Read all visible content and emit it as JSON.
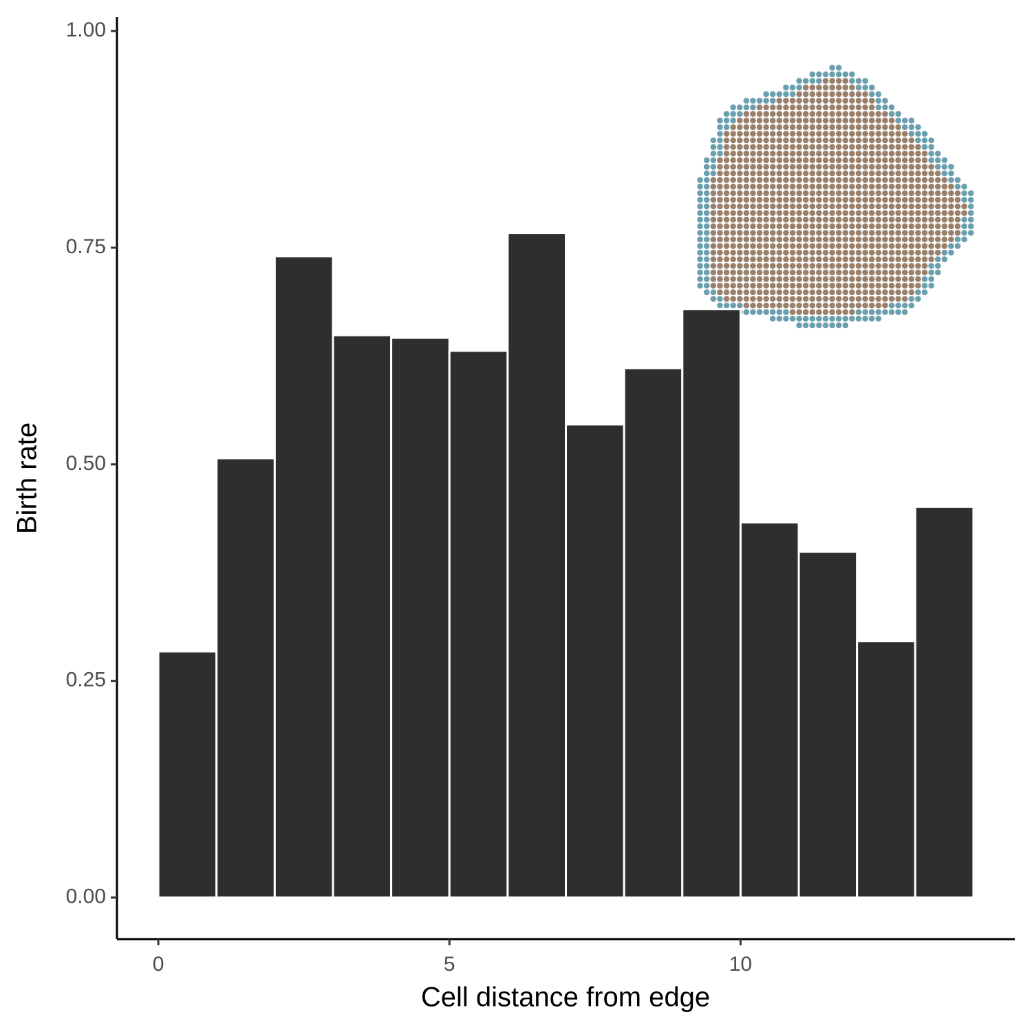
{
  "chart_data": {
    "type": "histogram",
    "bins": [
      0,
      1,
      2,
      3,
      4,
      5,
      6,
      7,
      8,
      9,
      10,
      11,
      12,
      13,
      14
    ],
    "values": [
      0.284,
      0.507,
      0.74,
      0.649,
      0.646,
      0.631,
      0.767,
      0.546,
      0.611,
      0.679,
      0.433,
      0.399,
      0.296,
      0.451
    ],
    "color": "#2e2e2e",
    "xlabel": "Cell distance from edge",
    "ylabel": "Birth rate",
    "xlim": [
      -0.71,
      14.71
    ],
    "ylim": [
      -0.048,
      1.016
    ],
    "xticks": [
      0,
      5,
      10
    ],
    "yticks": [
      {
        "value": 0,
        "label": "0.00"
      },
      {
        "value": 0.25,
        "label": "0.25"
      },
      {
        "value": 0.5,
        "label": "0.50"
      },
      {
        "value": 0.75,
        "label": "0.75"
      },
      {
        "value": 1,
        "label": "1.00"
      }
    ]
  }
}
